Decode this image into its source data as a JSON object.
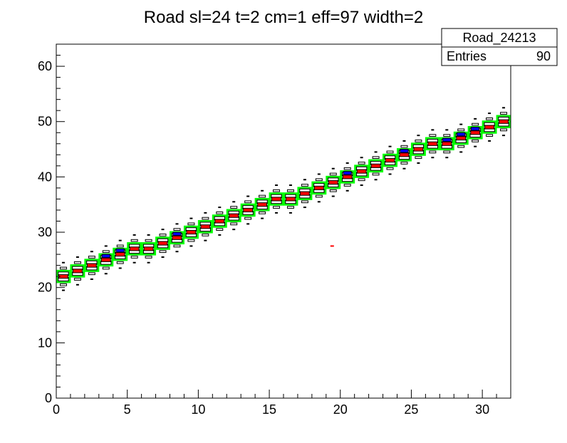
{
  "chart_data": {
    "type": "heatmap",
    "title": "Road sl=24 t=2 cm=1 eff=97 width=2",
    "xlabel": "",
    "ylabel": "",
    "xlim": [
      0,
      32
    ],
    "ylim": [
      0,
      64
    ],
    "x_ticks": [
      0,
      5,
      10,
      15,
      20,
      25,
      30
    ],
    "y_ticks": [
      0,
      10,
      20,
      30,
      40,
      50,
      60
    ],
    "grid": false,
    "stats_box": {
      "name": "Road_24213",
      "entries_label": "Entries",
      "entries_value": "90",
      "placement": "top-right"
    },
    "road": {
      "slope_per_layer": 0.88,
      "offset": 21.3,
      "road_color": "#00ff00",
      "hit_color": "#ff0000",
      "alt_hit_color": "#0000ff",
      "box_color": "#000000"
    },
    "road_cells": [
      {
        "x": 0,
        "y": 21
      },
      {
        "x": 1,
        "y": 22
      },
      {
        "x": 2,
        "y": 23
      },
      {
        "x": 3,
        "y": 24
      },
      {
        "x": 4,
        "y": 25
      },
      {
        "x": 5,
        "y": 26
      },
      {
        "x": 6,
        "y": 26
      },
      {
        "x": 7,
        "y": 27
      },
      {
        "x": 8,
        "y": 28
      },
      {
        "x": 9,
        "y": 29
      },
      {
        "x": 10,
        "y": 30
      },
      {
        "x": 11,
        "y": 31
      },
      {
        "x": 12,
        "y": 32
      },
      {
        "x": 13,
        "y": 33
      },
      {
        "x": 14,
        "y": 34
      },
      {
        "x": 15,
        "y": 35
      },
      {
        "x": 16,
        "y": 35
      },
      {
        "x": 17,
        "y": 36
      },
      {
        "x": 18,
        "y": 37
      },
      {
        "x": 19,
        "y": 38
      },
      {
        "x": 20,
        "y": 39
      },
      {
        "x": 21,
        "y": 40
      },
      {
        "x": 22,
        "y": 41
      },
      {
        "x": 23,
        "y": 42
      },
      {
        "x": 24,
        "y": 43
      },
      {
        "x": 25,
        "y": 44
      },
      {
        "x": 26,
        "y": 45
      },
      {
        "x": 27,
        "y": 45
      },
      {
        "x": 28,
        "y": 46
      },
      {
        "x": 29,
        "y": 47
      },
      {
        "x": 30,
        "y": 48
      },
      {
        "x": 31,
        "y": 49
      }
    ],
    "blue_hits": [
      {
        "x": 3,
        "y": 25
      },
      {
        "x": 4,
        "y": 26
      },
      {
        "x": 8,
        "y": 29
      },
      {
        "x": 20,
        "y": 40
      },
      {
        "x": 24,
        "y": 44
      },
      {
        "x": 27,
        "y": 46
      },
      {
        "x": 28,
        "y": 47
      },
      {
        "x": 29,
        "y": 48
      }
    ],
    "outlier": {
      "x": 19.4,
      "y": 27.5
    }
  }
}
